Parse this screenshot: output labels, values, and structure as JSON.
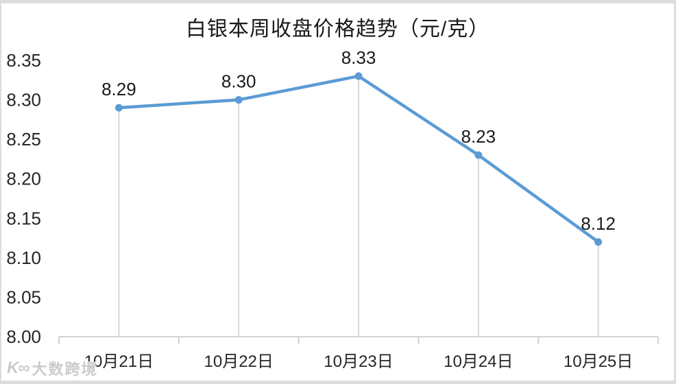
{
  "title": "白银本周收盘价格趋势（元/克）",
  "watermark": {
    "logo": "K∞",
    "text": "大数跨境"
  },
  "chart_data": {
    "type": "line",
    "title": "白银本周收盘价格趋势（元/克）",
    "categories": [
      "10月21日",
      "10月22日",
      "10月23日",
      "10月24日",
      "10月25日"
    ],
    "values": [
      8.29,
      8.3,
      8.33,
      8.23,
      8.12
    ],
    "data_labels": [
      "8.29",
      "8.30",
      "8.33",
      "8.23",
      "8.12"
    ],
    "xlabel": "",
    "ylabel": "",
    "ylim": [
      8.0,
      8.35
    ],
    "ytick_step": 0.05,
    "yticks": [
      "8.00",
      "8.05",
      "8.10",
      "8.15",
      "8.20",
      "8.25",
      "8.30",
      "8.35"
    ],
    "grid": false,
    "legend_position": "none",
    "line_color": "#5B9BD5",
    "marker_color": "#5B9BD5",
    "drop_line_color": "#d9d9d9",
    "axis_color": "#d3d3d3",
    "axis_label_color": "#262626",
    "data_label_color": "#1a1a1a"
  }
}
